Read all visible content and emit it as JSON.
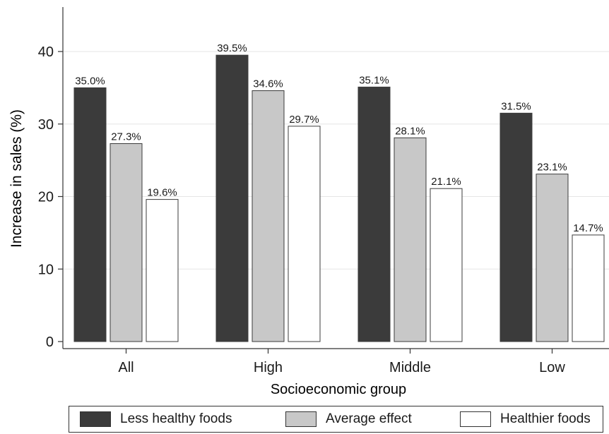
{
  "chart_data": {
    "type": "bar",
    "categories": [
      "All",
      "High",
      "Middle",
      "Low"
    ],
    "series": [
      {
        "name": "Less healthy foods",
        "values": [
          35.0,
          39.5,
          35.1,
          31.5
        ],
        "labels": [
          "35.0%",
          "39.5%",
          "35.1%",
          "31.5%"
        ],
        "color": "#3b3b3b"
      },
      {
        "name": "Average effect",
        "values": [
          27.3,
          34.6,
          28.1,
          23.1
        ],
        "labels": [
          "27.3%",
          "34.6%",
          "28.1%",
          "23.1%"
        ],
        "color": "#c8c8c8"
      },
      {
        "name": "Healthier foods",
        "values": [
          19.6,
          29.7,
          21.1,
          14.7
        ],
        "labels": [
          "19.6%",
          "29.7%",
          "21.1%",
          "14.7%"
        ],
        "color": "#ffffff"
      }
    ],
    "xlabel": "Socioeconomic group",
    "ylabel": "Increase in sales (%)",
    "ylim": [
      0,
      45
    ],
    "yticks": [
      0,
      10,
      20,
      30,
      40
    ],
    "grid": true,
    "legend_position": "bottom"
  }
}
